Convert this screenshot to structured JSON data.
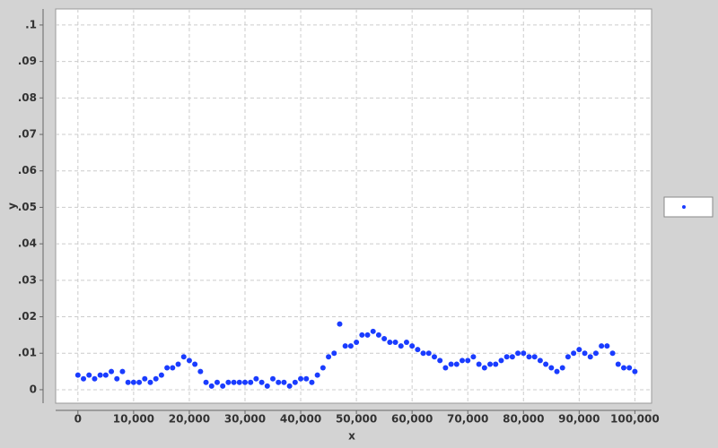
{
  "chart_data": {
    "type": "scatter",
    "x_label": "x",
    "y_label": "y",
    "xlim": [
      -4000,
      103000
    ],
    "ylim": [
      -0.0037,
      0.1044
    ],
    "xticks": [
      0,
      {
        "value": 10000,
        "label": "10,000"
      },
      {
        "value": 20000,
        "label": "20,000"
      },
      {
        "value": 30000,
        "label": "30,000"
      },
      {
        "value": 40000,
        "label": "40,000"
      },
      {
        "value": 50000,
        "label": "50,000"
      },
      {
        "value": 60000,
        "label": "60,000"
      },
      {
        "value": 70000,
        "label": "70,000"
      },
      {
        "value": 80000,
        "label": "80,000"
      },
      {
        "value": 90000,
        "label": "90,000"
      },
      {
        "value": 100000,
        "label": "100,000"
      }
    ],
    "yticks": [
      0,
      {
        "value": 0.01,
        "label": ".01"
      },
      {
        "value": 0.02,
        "label": ".02"
      },
      {
        "value": 0.03,
        "label": ".03"
      },
      {
        "value": 0.04,
        "label": ".04"
      },
      {
        "value": 0.05,
        "label": ".05"
      },
      {
        "value": 0.06,
        "label": ".06"
      },
      {
        "value": 0.07,
        "label": ".07"
      },
      {
        "value": 0.08,
        "label": ".08"
      },
      {
        "value": 0.09,
        "label": ".09"
      },
      {
        "value": 0.1,
        "label": ".1"
      }
    ],
    "grid": true,
    "legend": "right",
    "series": [
      {
        "color": "#1a3cff",
        "x": [
          0,
          1000,
          2000,
          3000,
          4000,
          5000,
          6000,
          7000,
          8000,
          9000,
          10000,
          11000,
          12000,
          13000,
          14000,
          15000,
          16000,
          17000,
          18000,
          19000,
          20000,
          21000,
          22000,
          23000,
          24000,
          25000,
          26000,
          27000,
          28000,
          29000,
          30000,
          31000,
          32000,
          33000,
          34000,
          35000,
          36000,
          37000,
          38000,
          39000,
          40000,
          41000,
          42000,
          43000,
          44000,
          45000,
          46000,
          47000,
          48000,
          49000,
          50000,
          51000,
          52000,
          53000,
          54000,
          55000,
          56000,
          57000,
          58000,
          59000,
          60000,
          61000,
          62000,
          63000,
          64000,
          65000,
          66000,
          67000,
          68000,
          69000,
          70000,
          71000,
          72000,
          73000,
          74000,
          75000,
          76000,
          77000,
          78000,
          79000,
          80000,
          81000,
          82000,
          83000,
          84000,
          85000,
          86000,
          87000,
          88000,
          89000,
          90000,
          91000,
          92000,
          93000,
          94000,
          95000,
          96000,
          97000,
          98000,
          99000,
          100000
        ],
        "values": [
          0.004,
          0.003,
          0.004,
          0.003,
          0.004,
          0.004,
          0.005,
          0.003,
          0.005,
          0.002,
          0.002,
          0.002,
          0.003,
          0.002,
          0.003,
          0.004,
          0.006,
          0.006,
          0.007,
          0.009,
          0.008,
          0.007,
          0.005,
          0.002,
          0.001,
          0.002,
          0.001,
          0.002,
          0.002,
          0.002,
          0.002,
          0.002,
          0.003,
          0.002,
          0.001,
          0.003,
          0.002,
          0.002,
          0.001,
          0.002,
          0.003,
          0.003,
          0.002,
          0.004,
          0.006,
          0.009,
          0.01,
          0.018,
          0.012,
          0.012,
          0.013,
          0.015,
          0.015,
          0.016,
          0.015,
          0.014,
          0.013,
          0.013,
          0.012,
          0.013,
          0.012,
          0.011,
          0.01,
          0.01,
          0.009,
          0.008,
          0.006,
          0.007,
          0.007,
          0.008,
          0.008,
          0.009,
          0.007,
          0.006,
          0.007,
          0.007,
          0.008,
          0.009,
          0.009,
          0.01,
          0.01,
          0.009,
          0.009,
          0.008,
          0.007,
          0.006,
          0.005,
          0.006,
          0.009,
          0.01,
          0.011,
          0.01,
          0.009,
          0.01,
          0.012,
          0.012,
          0.01,
          0.007,
          0.006,
          0.006,
          0.005
        ]
      }
    ]
  }
}
